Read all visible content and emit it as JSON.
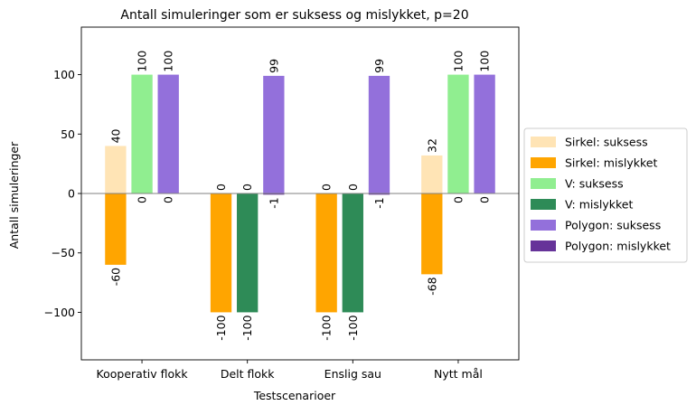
{
  "chart_data": {
    "type": "bar",
    "title": "Antall simuleringer som er suksess og mislykket, p=20",
    "xlabel": "Testscenarioer",
    "ylabel": "Antall simuleringer",
    "ylim": [
      -140,
      140
    ],
    "yticks": [
      -100,
      -50,
      0,
      50,
      100
    ],
    "ytick_labels": [
      "−100",
      "−50",
      "0",
      "50",
      "100"
    ],
    "grid": false,
    "legend_position": "outside-right",
    "categories": [
      "Kooperativ flokk",
      "Delt flokk",
      "Enslig sau",
      "Nytt mål"
    ],
    "groups": [
      {
        "name": "Sirkel",
        "series": [
          {
            "name": "Sirkel: suksess",
            "color": "#ffe4b5",
            "values": [
              40,
              0,
              0,
              32
            ]
          },
          {
            "name": "Sirkel: mislykket",
            "color": "#ffa500",
            "values": [
              -60,
              -100,
              -100,
              -68
            ]
          }
        ]
      },
      {
        "name": "V",
        "series": [
          {
            "name": "V: suksess",
            "color": "#90ee90",
            "values": [
              100,
              0,
              0,
              100
            ]
          },
          {
            "name": "V: mislykket",
            "color": "#2e8b57",
            "values": [
              0,
              -100,
              -100,
              0
            ]
          }
        ]
      },
      {
        "name": "Polygon",
        "series": [
          {
            "name": "Polygon: suksess",
            "color": "#9370db",
            "values": [
              100,
              99,
              99,
              100
            ]
          },
          {
            "name": "Polygon: mislykket",
            "color": "#663399",
            "values": [
              0,
              -1,
              -1,
              0
            ]
          }
        ]
      }
    ],
    "bar_labels": [
      [
        "40",
        "-60",
        "100",
        "0",
        "100",
        "0"
      ],
      [
        "0",
        "-100",
        "0",
        "-100",
        "99",
        "-1"
      ],
      [
        "0",
        "-100",
        "0",
        "-100",
        "99",
        "-1"
      ],
      [
        "32",
        "-68",
        "100",
        "0",
        "100",
        "0"
      ]
    ]
  }
}
